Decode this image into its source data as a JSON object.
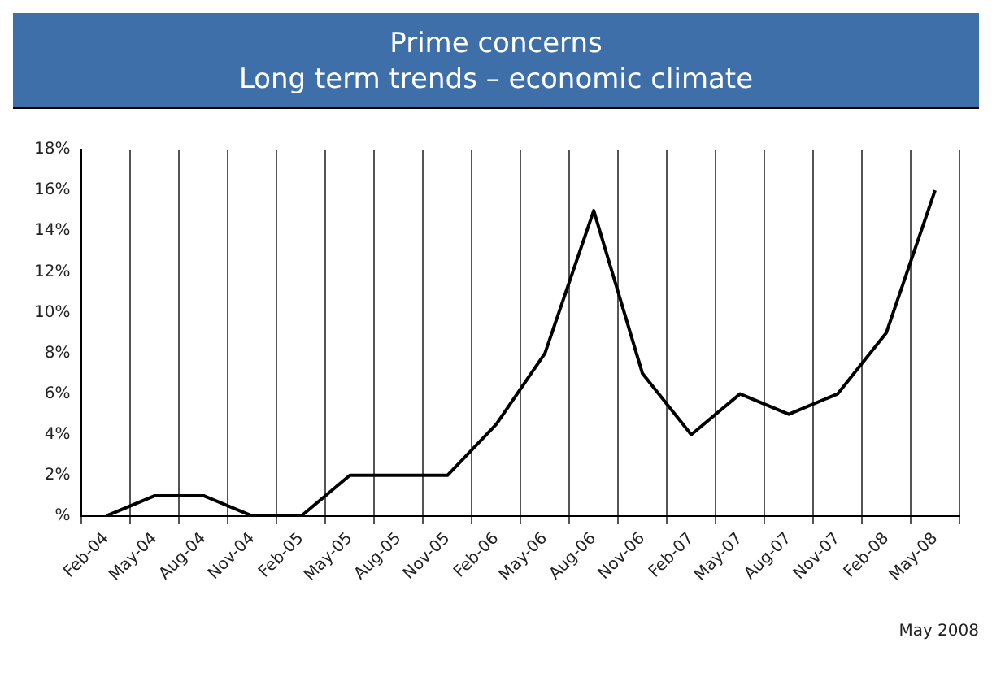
{
  "chart_data": {
    "type": "line",
    "title": "Prime concerns",
    "subtitle": "Long term trends – economic climate",
    "categories": [
      "Feb-04",
      "May-04",
      "Aug-04",
      "Nov-04",
      "Feb-05",
      "May-05",
      "Aug-05",
      "Nov-05",
      "Feb-06",
      "May-06",
      "Aug-06",
      "Nov-06",
      "Feb-07",
      "May-07",
      "Aug-07",
      "Nov-07",
      "Feb-08",
      "May-08"
    ],
    "series": [
      {
        "color": "#000000",
        "values": [
          0,
          1,
          1,
          0,
          0,
          2,
          2,
          2,
          4.5,
          8,
          15,
          7,
          4,
          6,
          5,
          6,
          9,
          16
        ]
      }
    ],
    "ylim": [
      0,
      18
    ],
    "yticks": [
      {
        "value": 0,
        "label": "%"
      },
      {
        "value": 2,
        "label": "2%"
      },
      {
        "value": 4,
        "label": "4%"
      },
      {
        "value": 6,
        "label": "6%"
      },
      {
        "value": 8,
        "label": "8%"
      },
      {
        "value": 10,
        "label": "10%"
      },
      {
        "value": 12,
        "label": "12%"
      },
      {
        "value": 14,
        "label": "14%"
      },
      {
        "value": 16,
        "label": "16%"
      },
      {
        "value": 18,
        "label": "18%"
      }
    ],
    "grid": "x",
    "legend": false,
    "marker": "none",
    "line_style": "solid",
    "annotations": [
      "May 2008"
    ]
  }
}
